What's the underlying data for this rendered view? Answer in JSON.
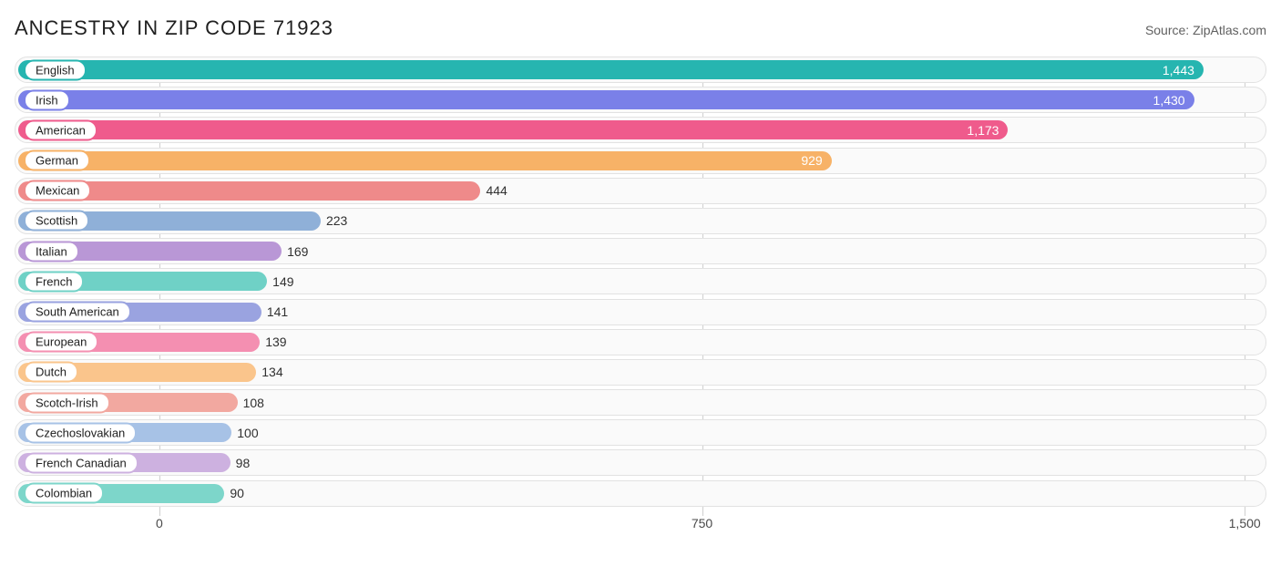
{
  "header": {
    "title": "ANCESTRY IN ZIP CODE 71923",
    "source": "Source: ZipAtlas.com"
  },
  "chart": {
    "type": "bar",
    "orientation": "horizontal",
    "xlim": [
      -200,
      1530
    ],
    "xticks": [
      0,
      750,
      1500
    ],
    "xtick_labels": [
      "0",
      "750",
      "1,500"
    ],
    "track_bg": "#fafafa",
    "track_border": "#e2e2e2",
    "grid_color": "#cfcfcf",
    "title_fontsize": 22,
    "label_fontsize": 13,
    "value_fontsize": 14,
    "value_inside_threshold": 900,
    "bars": [
      {
        "label": "English",
        "value": 1443,
        "value_text": "1,443",
        "color": "#26b5b0"
      },
      {
        "label": "Irish",
        "value": 1430,
        "value_text": "1,430",
        "color": "#7a80e8"
      },
      {
        "label": "American",
        "value": 1173,
        "value_text": "1,173",
        "color": "#ef5b8c"
      },
      {
        "label": "German",
        "value": 929,
        "value_text": "929",
        "color": "#f7b267"
      },
      {
        "label": "Mexican",
        "value": 444,
        "value_text": "444",
        "color": "#ef8a8a"
      },
      {
        "label": "Scottish",
        "value": 223,
        "value_text": "223",
        "color": "#8fb0d8"
      },
      {
        "label": "Italian",
        "value": 169,
        "value_text": "169",
        "color": "#b997d6"
      },
      {
        "label": "French",
        "value": 149,
        "value_text": "149",
        "color": "#6fd1c6"
      },
      {
        "label": "South American",
        "value": 141,
        "value_text": "141",
        "color": "#9aa3e0"
      },
      {
        "label": "European",
        "value": 139,
        "value_text": "139",
        "color": "#f48fb1"
      },
      {
        "label": "Dutch",
        "value": 134,
        "value_text": "134",
        "color": "#fac58c"
      },
      {
        "label": "Scotch-Irish",
        "value": 108,
        "value_text": "108",
        "color": "#f2a8a0"
      },
      {
        "label": "Czechoslovakian",
        "value": 100,
        "value_text": "100",
        "color": "#a7c2e6"
      },
      {
        "label": "French Canadian",
        "value": 98,
        "value_text": "98",
        "color": "#cdb1e0"
      },
      {
        "label": "Colombian",
        "value": 90,
        "value_text": "90",
        "color": "#7dd6ca"
      }
    ]
  }
}
